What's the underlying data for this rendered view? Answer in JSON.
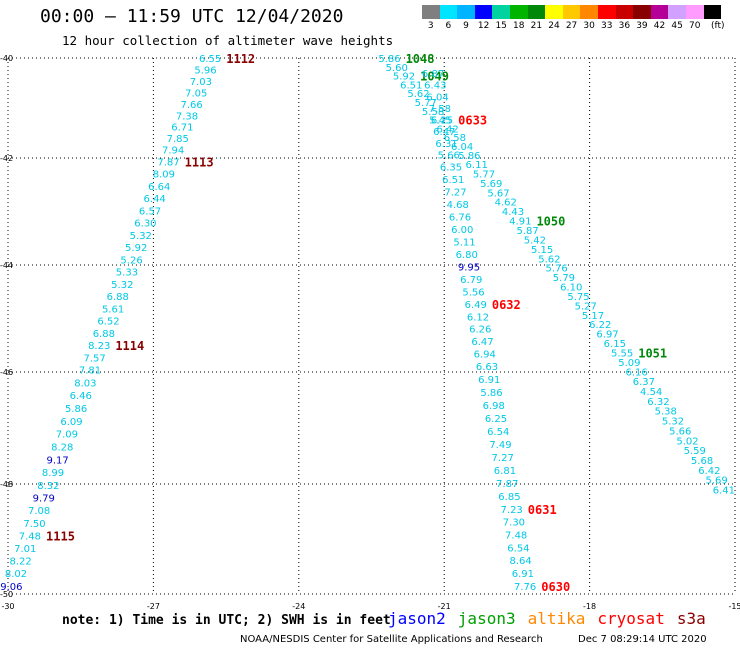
{
  "header": {
    "title": "00:00 – 11:59 UTC 12/04/2020",
    "subtitle": "12 hour collection of altimeter wave heights"
  },
  "colorbar": {
    "colors": [
      "#7f7f7f",
      "#00e5ff",
      "#00b4ff",
      "#0000ff",
      "#00d2a0",
      "#00b400",
      "#00880a",
      "#ffff00",
      "#ffc800",
      "#ff8800",
      "#ff0000",
      "#c80000",
      "#880000",
      "#b40096",
      "#d2a0ff",
      "#ff9bff",
      "#000000"
    ],
    "labels": [
      "3",
      "6",
      "9",
      "12",
      "15",
      "18",
      "21",
      "24",
      "27",
      "30",
      "33",
      "36",
      "39",
      "42",
      "45",
      "70"
    ],
    "unit": "(ft)"
  },
  "map": {
    "lon_ticks": [
      "-30",
      "-27",
      "-24",
      "-21",
      "-18",
      "-15"
    ],
    "lat_ticks": [
      "-40",
      "-42",
      "-44",
      "-46",
      "-48",
      "-50"
    ],
    "tracks": [
      {
        "name": "track-a",
        "start": [
          -25.6,
          -40.0
        ],
        "end": [
          -29.7,
          -49.85
        ],
        "values": [
          "6.55",
          "5.96",
          "7.03",
          "7.05",
          "7.66",
          "7.38",
          "6.71",
          "7.85",
          "7.94",
          "7.87",
          "8.09",
          "6.64",
          "6.44",
          "6.57",
          "6.30",
          "5.32",
          "5.92",
          "5.26",
          "5.33",
          "5.32",
          "6.88",
          "5.61",
          "6.52",
          "6.88",
          "8.23",
          "7.57",
          "7.81",
          "8.03",
          "6.46",
          "5.86",
          "6.09",
          "7.09",
          "8.28",
          "9.17",
          "8.99",
          "8.32",
          "9.79",
          "7.08",
          "7.50",
          "7.48",
          "7.01",
          "8.22",
          "8.02",
          "9.06"
        ],
        "times": [
          {
            "label": "1112",
            "index": 0,
            "color": "#880000"
          },
          {
            "label": "1113",
            "index": 9,
            "color": "#880000"
          },
          {
            "label": "1114",
            "index": 24,
            "color": "#880000"
          },
          {
            "label": "1115",
            "index": 39,
            "color": "#880000"
          }
        ]
      },
      {
        "name": "track-b",
        "start": [
          -21.9,
          -40.0
        ],
        "end": [
          -15.0,
          -48.1
        ],
        "values": [
          "5.86",
          "5.60",
          "5.92",
          "6.51",
          "5.62",
          "5.77",
          "5.58",
          "5.45",
          "6.42",
          "6.58",
          "6.04",
          "5.86",
          "6.11",
          "5.77",
          "5.69",
          "5.67",
          "4.62",
          "4.43",
          "4.91",
          "5.87",
          "5.42",
          "5.15",
          "5.62",
          "5.76",
          "5.79",
          "6.10",
          "5.75",
          "5.27",
          "5.17",
          "6.22",
          "6.97",
          "6.15",
          "5.55",
          "5.09",
          "6.16",
          "6.37",
          "4.54",
          "6.32",
          "5.38",
          "5.32",
          "5.66",
          "5.02",
          "5.59",
          "5.68",
          "6.42",
          "5.69",
          "6.41"
        ],
        "times": [
          {
            "label": "1048",
            "index": 0,
            "color": "#00880a"
          },
          {
            "label": "1049",
            "index": 2,
            "color": "#00880a"
          },
          {
            "label": "1050",
            "index": 18,
            "color": "#00880a"
          },
          {
            "label": "1051",
            "index": 32,
            "color": "#00880a"
          }
        ]
      },
      {
        "name": "track-c",
        "start": [
          -21.0,
          -40.3
        ],
        "end": [
          -19.1,
          -49.85
        ],
        "values": [
          "6.87",
          "6.43",
          "6.04",
          "7.58",
          "6.25",
          "6.47",
          "6.31",
          "5.66",
          "6.35",
          "6.51",
          "7.27",
          "4.68",
          "6.76",
          "6.00",
          "5.11",
          "6.80",
          "9.95",
          "6.79",
          "5.56",
          "6.49",
          "6.12",
          "6.26",
          "6.47",
          "6.94",
          "6.63",
          "6.91",
          "5.86",
          "6.98",
          "6.25",
          "6.54",
          "7.49",
          "7.27",
          "6.81",
          "7.87",
          "6.85",
          "7.23",
          "7.30",
          "7.48",
          "6.54",
          "8.64",
          "6.91",
          "7.76"
        ],
        "times": [
          {
            "label": "0633",
            "index": 4,
            "color": "#ff0000"
          },
          {
            "label": "0632",
            "index": 19,
            "color": "#ff0000"
          },
          {
            "label": "0631",
            "index": 35,
            "color": "#ff0000"
          },
          {
            "label": "0630",
            "index": 41,
            "color": "#ff0000"
          }
        ]
      }
    ]
  },
  "footer": {
    "note": "note:  1) Time is in UTC;  2) SWH is in feet",
    "legend": [
      {
        "label": "jason2",
        "color": "#0000ff"
      },
      {
        "label": "jason3",
        "color": "#00a000"
      },
      {
        "label": "altika",
        "color": "#ff8800"
      },
      {
        "label": "cryosat",
        "color": "#ff0000"
      },
      {
        "label": "s3a",
        "color": "#880000"
      }
    ],
    "credit": "NOAA/NESDIS Center for Satellite Applications and Research",
    "timestamp": "Dec  7 08:29:14 UTC 2020"
  }
}
